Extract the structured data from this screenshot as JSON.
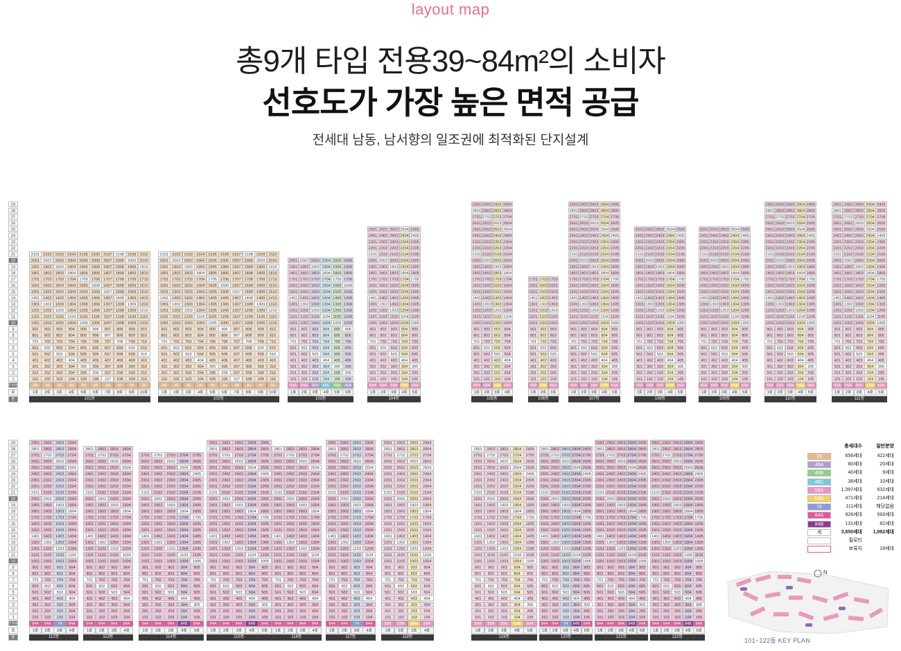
{
  "header": {
    "tag": "layout map",
    "title": "총9개 타입 전용39~84m²의 소비자",
    "title_bold": "선호도가 가장 높은 면적 공급",
    "subtitle": "전세대 남동, 남서향의 일조권에 최적화된 단지설계"
  },
  "row_labels": {
    "type": "TYPE",
    "ho": "호",
    "dong": "동"
  },
  "type_colors": {
    "39": "#e9b98c",
    "46A": "#b49fd0",
    "46B": "#8fcf8a",
    "46C": "#78c9e0",
    "59A": "#ee93c4",
    "59B": "#f6d263",
    "74": "#8b9bd6",
    "84A": "#e5559d",
    "84B": "#8d3a95",
    "none": "#ffffff"
  },
  "buildings": [
    {
      "dong": "101동",
      "floors": 21,
      "cols": 10,
      "types": [
        "39",
        "39",
        "39",
        "39",
        "39",
        "39",
        "39",
        "39",
        "39",
        "39"
      ],
      "hos": [
        "1호",
        "2호",
        "3호",
        "4호",
        "5호",
        "6호",
        "7호",
        "8호",
        "9호",
        "10호"
      ],
      "block": "top"
    },
    {
      "dong": "102동",
      "floors": 21,
      "cols": 10,
      "types": [
        "39",
        "39",
        "39",
        "39",
        "39",
        "39",
        "39",
        "39",
        "39",
        "39"
      ],
      "hos": [
        "1호",
        "2호",
        "3호",
        "4호",
        "5호",
        "6호",
        "7호",
        "8호",
        "9호",
        "10호"
      ],
      "block": "top"
    },
    {
      "dong": "103동",
      "floors": 20,
      "cols": 6,
      "types": [
        "59A",
        "59A",
        "46A",
        "46C",
        "46B",
        "46A"
      ],
      "hos": [
        "1호",
        "2호",
        "3호",
        "4호",
        "5호",
        "6호"
      ],
      "block": "top"
    },
    {
      "dong": "104동",
      "floors": 25,
      "cols": 5,
      "types": [
        "59A",
        "59A",
        "59A",
        "59B",
        "59A"
      ],
      "hos": [
        "1호",
        "2호",
        "3호",
        "4호",
        "5호"
      ],
      "block": "top"
    },
    {
      "dong": "105동",
      "floors": 29,
      "cols": 4,
      "types": [
        "59A",
        "59A",
        "59B",
        "59A"
      ],
      "hos": [
        "1호",
        "2호",
        "3호",
        "4호"
      ],
      "block": "top"
    },
    {
      "dong": "106동",
      "floors": 17,
      "cols": 3,
      "types": [
        "59A",
        "59B",
        "59A"
      ],
      "hos": [
        "1호",
        "2호",
        "3호"
      ],
      "block": "top"
    },
    {
      "dong": "107동",
      "floors": 29,
      "cols": 5,
      "types": [
        "59A",
        "59A",
        "59A",
        "59B",
        "59A"
      ],
      "hos": [
        "1호",
        "2호",
        "3호",
        "4호",
        "5호"
      ],
      "block": "top"
    },
    {
      "dong": "108동",
      "floors": 25,
      "cols": 5,
      "types": [
        "59A",
        "59A",
        "59A",
        "59B",
        "59A"
      ],
      "hos": [
        "1호",
        "2호",
        "3호",
        "4호",
        "5호"
      ],
      "block": "top"
    },
    {
      "dong": "109동",
      "floors": 25,
      "cols": 5,
      "types": [
        "59A",
        "59A",
        "59A",
        "59B",
        "59A"
      ],
      "hos": [
        "1호",
        "2호",
        "3호",
        "4호",
        "5호"
      ],
      "block": "top"
    },
    {
      "dong": "110동",
      "floors": 29,
      "cols": 5,
      "types": [
        "59A",
        "59A",
        "59A",
        "59B",
        "59A"
      ],
      "hos": [
        "1호",
        "2호",
        "3호",
        "4호",
        "5호"
      ],
      "block": "top"
    },
    {
      "dong": "111동",
      "floors": 29,
      "cols": 5,
      "types": [
        "59A",
        "59A",
        "59A",
        "59B",
        "59A"
      ],
      "hos": [
        "1호",
        "2호",
        "3호",
        "4호",
        "5호"
      ],
      "block": "top"
    },
    {
      "dong": "112동",
      "floors": 29,
      "cols": 4,
      "types": [
        "84A",
        "84A",
        "74",
        "84A"
      ],
      "hos": [
        "1호",
        "2호",
        "3호",
        "4호"
      ],
      "block": "bottom"
    },
    {
      "dong": "113동",
      "floors": 28,
      "cols": 4,
      "types": [
        "84A",
        "84A",
        "84A",
        "84A"
      ],
      "hos": [
        "1호",
        "2호",
        "3호",
        "4호"
      ],
      "block": "bottom"
    },
    {
      "dong": "114동",
      "floors": 27,
      "cols": 5,
      "types": [
        "84A",
        "84A",
        "84A",
        "84B",
        "84A"
      ],
      "hos": [
        "1호",
        "2호",
        "3호",
        "4호",
        "5호"
      ],
      "block": "bottom"
    },
    {
      "dong": "115동",
      "floors": 29,
      "cols": 5,
      "types": [
        "84A",
        "84A",
        "84A",
        "84B",
        "84A"
      ],
      "hos": [
        "1호",
        "2호",
        "3호",
        "4호",
        "5호"
      ],
      "block": "bottom"
    },
    {
      "dong": "116동",
      "floors": 28,
      "cols": 4,
      "types": [
        "84A",
        "84A",
        "84A",
        "84A"
      ],
      "hos": [
        "1호",
        "2호",
        "3호",
        "4호"
      ],
      "block": "bottom"
    },
    {
      "dong": "117동",
      "floors": 29,
      "cols": 4,
      "types": [
        "84A",
        "84A",
        "74",
        "84A"
      ],
      "hos": [
        "1호",
        "2호",
        "3호",
        "4호"
      ],
      "block": "bottom"
    },
    {
      "dong": "118동",
      "floors": 29,
      "cols": 4,
      "types": [
        "59A",
        "59A",
        "59B",
        "59A"
      ],
      "hos": [
        "1호",
        "2호",
        "3호",
        "4호"
      ],
      "block": "bottom"
    },
    {
      "dong": "119동",
      "floors": 28,
      "cols": 5,
      "types": [
        "59A",
        "59A",
        "59A",
        "59B",
        "59A"
      ],
      "hos": [
        "1호",
        "2호",
        "3호",
        "4호",
        "5호"
      ],
      "block": "bottom"
    },
    {
      "dong": "120동",
      "floors": 28,
      "cols": 5,
      "types": [
        "84A",
        "84A",
        "74",
        "84B",
        "84A"
      ],
      "hos": [
        "1호",
        "2호",
        "3호",
        "4호",
        "5호"
      ],
      "block": "bottom"
    },
    {
      "dong": "121동",
      "floors": 29,
      "cols": 5,
      "types": [
        "84A",
        "84A",
        "84A",
        "84B",
        "84A"
      ],
      "hos": [
        "1호",
        "2호",
        "3호",
        "4호",
        "5호"
      ],
      "block": "bottom"
    },
    {
      "dong": "122동",
      "floors": 29,
      "cols": 5,
      "types": [
        "84A",
        "84A",
        "84A",
        "84B",
        "84A"
      ],
      "hos": [
        "1호",
        "2호",
        "3호",
        "4호",
        "5호"
      ],
      "block": "bottom"
    }
  ],
  "legend": {
    "head_total": "총세대수",
    "head_general": "일반분양",
    "rows": [
      {
        "type": "39",
        "total": "656세대",
        "general": "422세대"
      },
      {
        "type": "46A",
        "total": "80세대",
        "general": "20세대"
      },
      {
        "type": "46B",
        "total": "40세대",
        "general": "9세대"
      },
      {
        "type": "46C",
        "total": "38세대",
        "general": "10세대"
      },
      {
        "type": "59A",
        "total": "1,397세대",
        "general": "632세대"
      },
      {
        "type": "59B",
        "total": "471세대",
        "general": "214세대"
      },
      {
        "type": "74",
        "total": "111세대",
        "general": "해당없음"
      },
      {
        "type": "84A",
        "total": "926세대",
        "general": "593세대"
      },
      {
        "type": "84B",
        "total": "131세대",
        "general": "82세대"
      },
      {
        "type": "계",
        "total": "3,850세대",
        "general": "1,982세대"
      },
      {
        "type": "",
        "total": "필로티",
        "general": ""
      },
      {
        "type": "",
        "total": "보류지",
        "general": "19세대"
      }
    ]
  },
  "keyplan": {
    "caption": "101~122동 KEY PLAN",
    "north": "N"
  }
}
